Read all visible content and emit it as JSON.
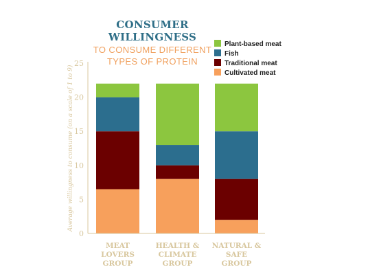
{
  "chart_data": {
    "type": "bar",
    "stacked": true,
    "title": "CONSUMER WILLINGNESS",
    "subtitle": "TO CONSUME DIFFERENT TYPES OF PROTEIN",
    "ylabel": "Average willingness to consume (on a scale of 1 to 9)",
    "xlabel": "",
    "ylim": [
      0,
      25
    ],
    "yticks": [
      0,
      5,
      10,
      15,
      20,
      25
    ],
    "grid": false,
    "legend_position": "top-right",
    "categories": [
      "MEAT LOVERS GROUP",
      "HEALTH & CLIMATE GROUP",
      "NATURAL & SAFE GROUP"
    ],
    "series": [
      {
        "name": "Cultivated meat",
        "color": "#f7a05c",
        "values": [
          6.5,
          8,
          2
        ]
      },
      {
        "name": "Traditional meat",
        "color": "#6b0000",
        "values": [
          8.5,
          2,
          6
        ]
      },
      {
        "name": "Fish",
        "color": "#2c6e8e",
        "values": [
          5,
          3,
          7
        ]
      },
      {
        "name": "Plant-based meat",
        "color": "#8cc63f",
        "values": [
          2,
          9,
          7
        ]
      }
    ],
    "legend_order": [
      "Plant-based meat",
      "Fish",
      "Traditional meat",
      "Cultivated meat"
    ]
  }
}
